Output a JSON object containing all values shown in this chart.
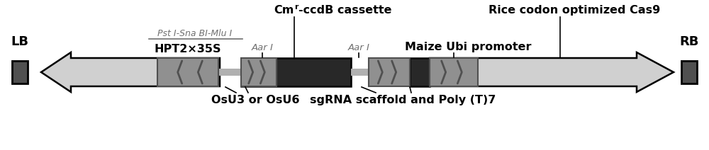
{
  "fig_width": 10.0,
  "fig_height": 2.12,
  "dpi": 100,
  "bg_color": "#ffffff",
  "colors": {
    "light_gray": "#c0c0c0",
    "light_gray2": "#d0d0d0",
    "mid_gray": "#909090",
    "dark_gray": "#505050",
    "very_dark": "#282828",
    "connector": "#b0b0b0"
  },
  "labels": {
    "LB": "LB",
    "RB": "RB",
    "HPT2x35S": "HPT2×35S",
    "AarI_left": "Aar I",
    "AarI_right": "Aar I",
    "Pst_label": "Pst I-Sna BI-Mlu I",
    "OsU3": "OsU3 or OsU6",
    "sgRNA": "sgRNA scaffold and Poly (T)7",
    "MaizeUbi": "Maize Ubi promoter",
    "RiceCas9": "Rice codon optimized Cas9"
  }
}
